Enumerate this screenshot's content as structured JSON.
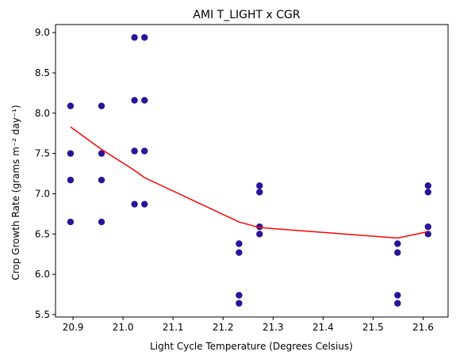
{
  "chart_data": {
    "type": "scatter",
    "title": "AMI T_LIGHT x CGR",
    "xlabel": "Light Cycle Temperature (Degrees Celsius)",
    "ylabel": "Crop Growth Rate (grams m⁻² day⁻¹)",
    "xlim": [
      20.865,
      21.65
    ],
    "ylim": [
      5.47,
      9.1
    ],
    "xticks": [
      20.9,
      21.0,
      21.1,
      21.2,
      21.3,
      21.4,
      21.5,
      21.6
    ],
    "xtick_labels": [
      "20.9",
      "21.0",
      "21.1",
      "21.2",
      "21.3",
      "21.4",
      "21.5",
      "21.6"
    ],
    "yticks": [
      5.5,
      6.0,
      6.5,
      7.0,
      7.5,
      8.0,
      8.5,
      9.0
    ],
    "ytick_labels": [
      "5.5",
      "6.0",
      "6.5",
      "7.0",
      "7.5",
      "8.0",
      "8.5",
      "9.0"
    ],
    "grid": false,
    "point_color": "#2b1499",
    "line_color": "#ff0000",
    "points": [
      {
        "x": 20.895,
        "y": 8.09
      },
      {
        "x": 20.895,
        "y": 7.5
      },
      {
        "x": 20.895,
        "y": 7.17
      },
      {
        "x": 20.895,
        "y": 6.65
      },
      {
        "x": 20.957,
        "y": 8.09
      },
      {
        "x": 20.957,
        "y": 7.5
      },
      {
        "x": 20.957,
        "y": 7.17
      },
      {
        "x": 20.957,
        "y": 6.65
      },
      {
        "x": 21.023,
        "y": 8.94
      },
      {
        "x": 21.023,
        "y": 8.16
      },
      {
        "x": 21.023,
        "y": 7.53
      },
      {
        "x": 21.023,
        "y": 6.87
      },
      {
        "x": 21.043,
        "y": 8.94
      },
      {
        "x": 21.043,
        "y": 8.16
      },
      {
        "x": 21.043,
        "y": 7.53
      },
      {
        "x": 21.043,
        "y": 6.87
      },
      {
        "x": 21.232,
        "y": 6.38
      },
      {
        "x": 21.232,
        "y": 6.27
      },
      {
        "x": 21.232,
        "y": 5.74
      },
      {
        "x": 21.232,
        "y": 5.64
      },
      {
        "x": 21.273,
        "y": 7.1
      },
      {
        "x": 21.273,
        "y": 7.02
      },
      {
        "x": 21.273,
        "y": 6.59
      },
      {
        "x": 21.273,
        "y": 6.5
      },
      {
        "x": 21.549,
        "y": 6.38
      },
      {
        "x": 21.549,
        "y": 6.27
      },
      {
        "x": 21.549,
        "y": 5.74
      },
      {
        "x": 21.549,
        "y": 5.64
      },
      {
        "x": 21.61,
        "y": 7.1
      },
      {
        "x": 21.61,
        "y": 7.02
      },
      {
        "x": 21.61,
        "y": 6.59
      },
      {
        "x": 21.61,
        "y": 6.5
      }
    ],
    "fit_line": {
      "x": [
        20.895,
        20.957,
        21.023,
        21.043,
        21.232,
        21.273,
        21.549,
        21.61
      ],
      "y": [
        7.83,
        7.55,
        7.29,
        7.2,
        6.65,
        6.58,
        6.45,
        6.53
      ]
    }
  }
}
